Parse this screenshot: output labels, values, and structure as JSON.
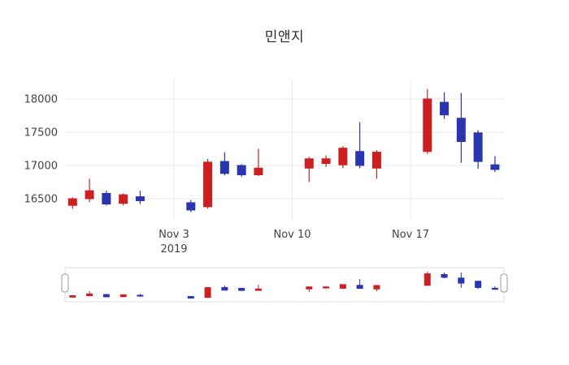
{
  "chart_data": {
    "type": "candlestick",
    "title": "민앤지",
    "x": [
      "2019-10-28",
      "2019-10-29",
      "2019-10-30",
      "2019-10-31",
      "2019-11-01",
      "2019-11-04",
      "2019-11-05",
      "2019-11-06",
      "2019-11-07",
      "2019-11-08",
      "2019-11-11",
      "2019-11-12",
      "2019-11-13",
      "2019-11-14",
      "2019-11-15",
      "2019-11-18",
      "2019-11-19",
      "2019-11-20",
      "2019-11-21",
      "2019-11-22"
    ],
    "open": [
      16400,
      16500,
      16580,
      16430,
      16530,
      16440,
      16380,
      17060,
      17000,
      16860,
      16960,
      17030,
      17010,
      17210,
      16960,
      17210,
      17950,
      17710,
      17490,
      17010
    ],
    "high": [
      16520,
      16800,
      16620,
      16580,
      16620,
      16480,
      17100,
      17200,
      17020,
      17250,
      17130,
      17150,
      17290,
      17650,
      17230,
      18150,
      18100,
      18090,
      17530,
      17140
    ],
    "low": [
      16350,
      16450,
      16400,
      16400,
      16420,
      16300,
      16350,
      16850,
      16830,
      16840,
      16750,
      16980,
      16960,
      16960,
      16800,
      17170,
      17700,
      17040,
      16950,
      16900
    ],
    "close": [
      16500,
      16620,
      16420,
      16560,
      16470,
      16330,
      17050,
      16880,
      16860,
      16960,
      17100,
      17100,
      17260,
      17000,
      17200,
      18000,
      17760,
      17360,
      17060,
      16940
    ],
    "yticks": [
      {
        "value": 16500,
        "label": "16500"
      },
      {
        "value": 17000,
        "label": "17000"
      },
      {
        "value": 17500,
        "label": "17500"
      },
      {
        "value": 18000,
        "label": "18000"
      }
    ],
    "xticks": [
      {
        "date": "2019-11-03",
        "label": "Nov 3",
        "sublabel": "2019"
      },
      {
        "date": "2019-11-10",
        "label": "Nov 10",
        "sublabel": ""
      },
      {
        "date": "2019-11-17",
        "label": "Nov 17",
        "sublabel": ""
      }
    ],
    "ylim": [
      16150,
      18280
    ],
    "grid": true,
    "legend": "none",
    "rangeslider": true,
    "increasing_color": "#cc2020",
    "decreasing_color": "#2a35b0",
    "gridline_color": "#e8e8e8",
    "tick_color": "#444444",
    "slider_border_color": "#dddddd",
    "slider_handle_color": "#9a9a9a"
  }
}
